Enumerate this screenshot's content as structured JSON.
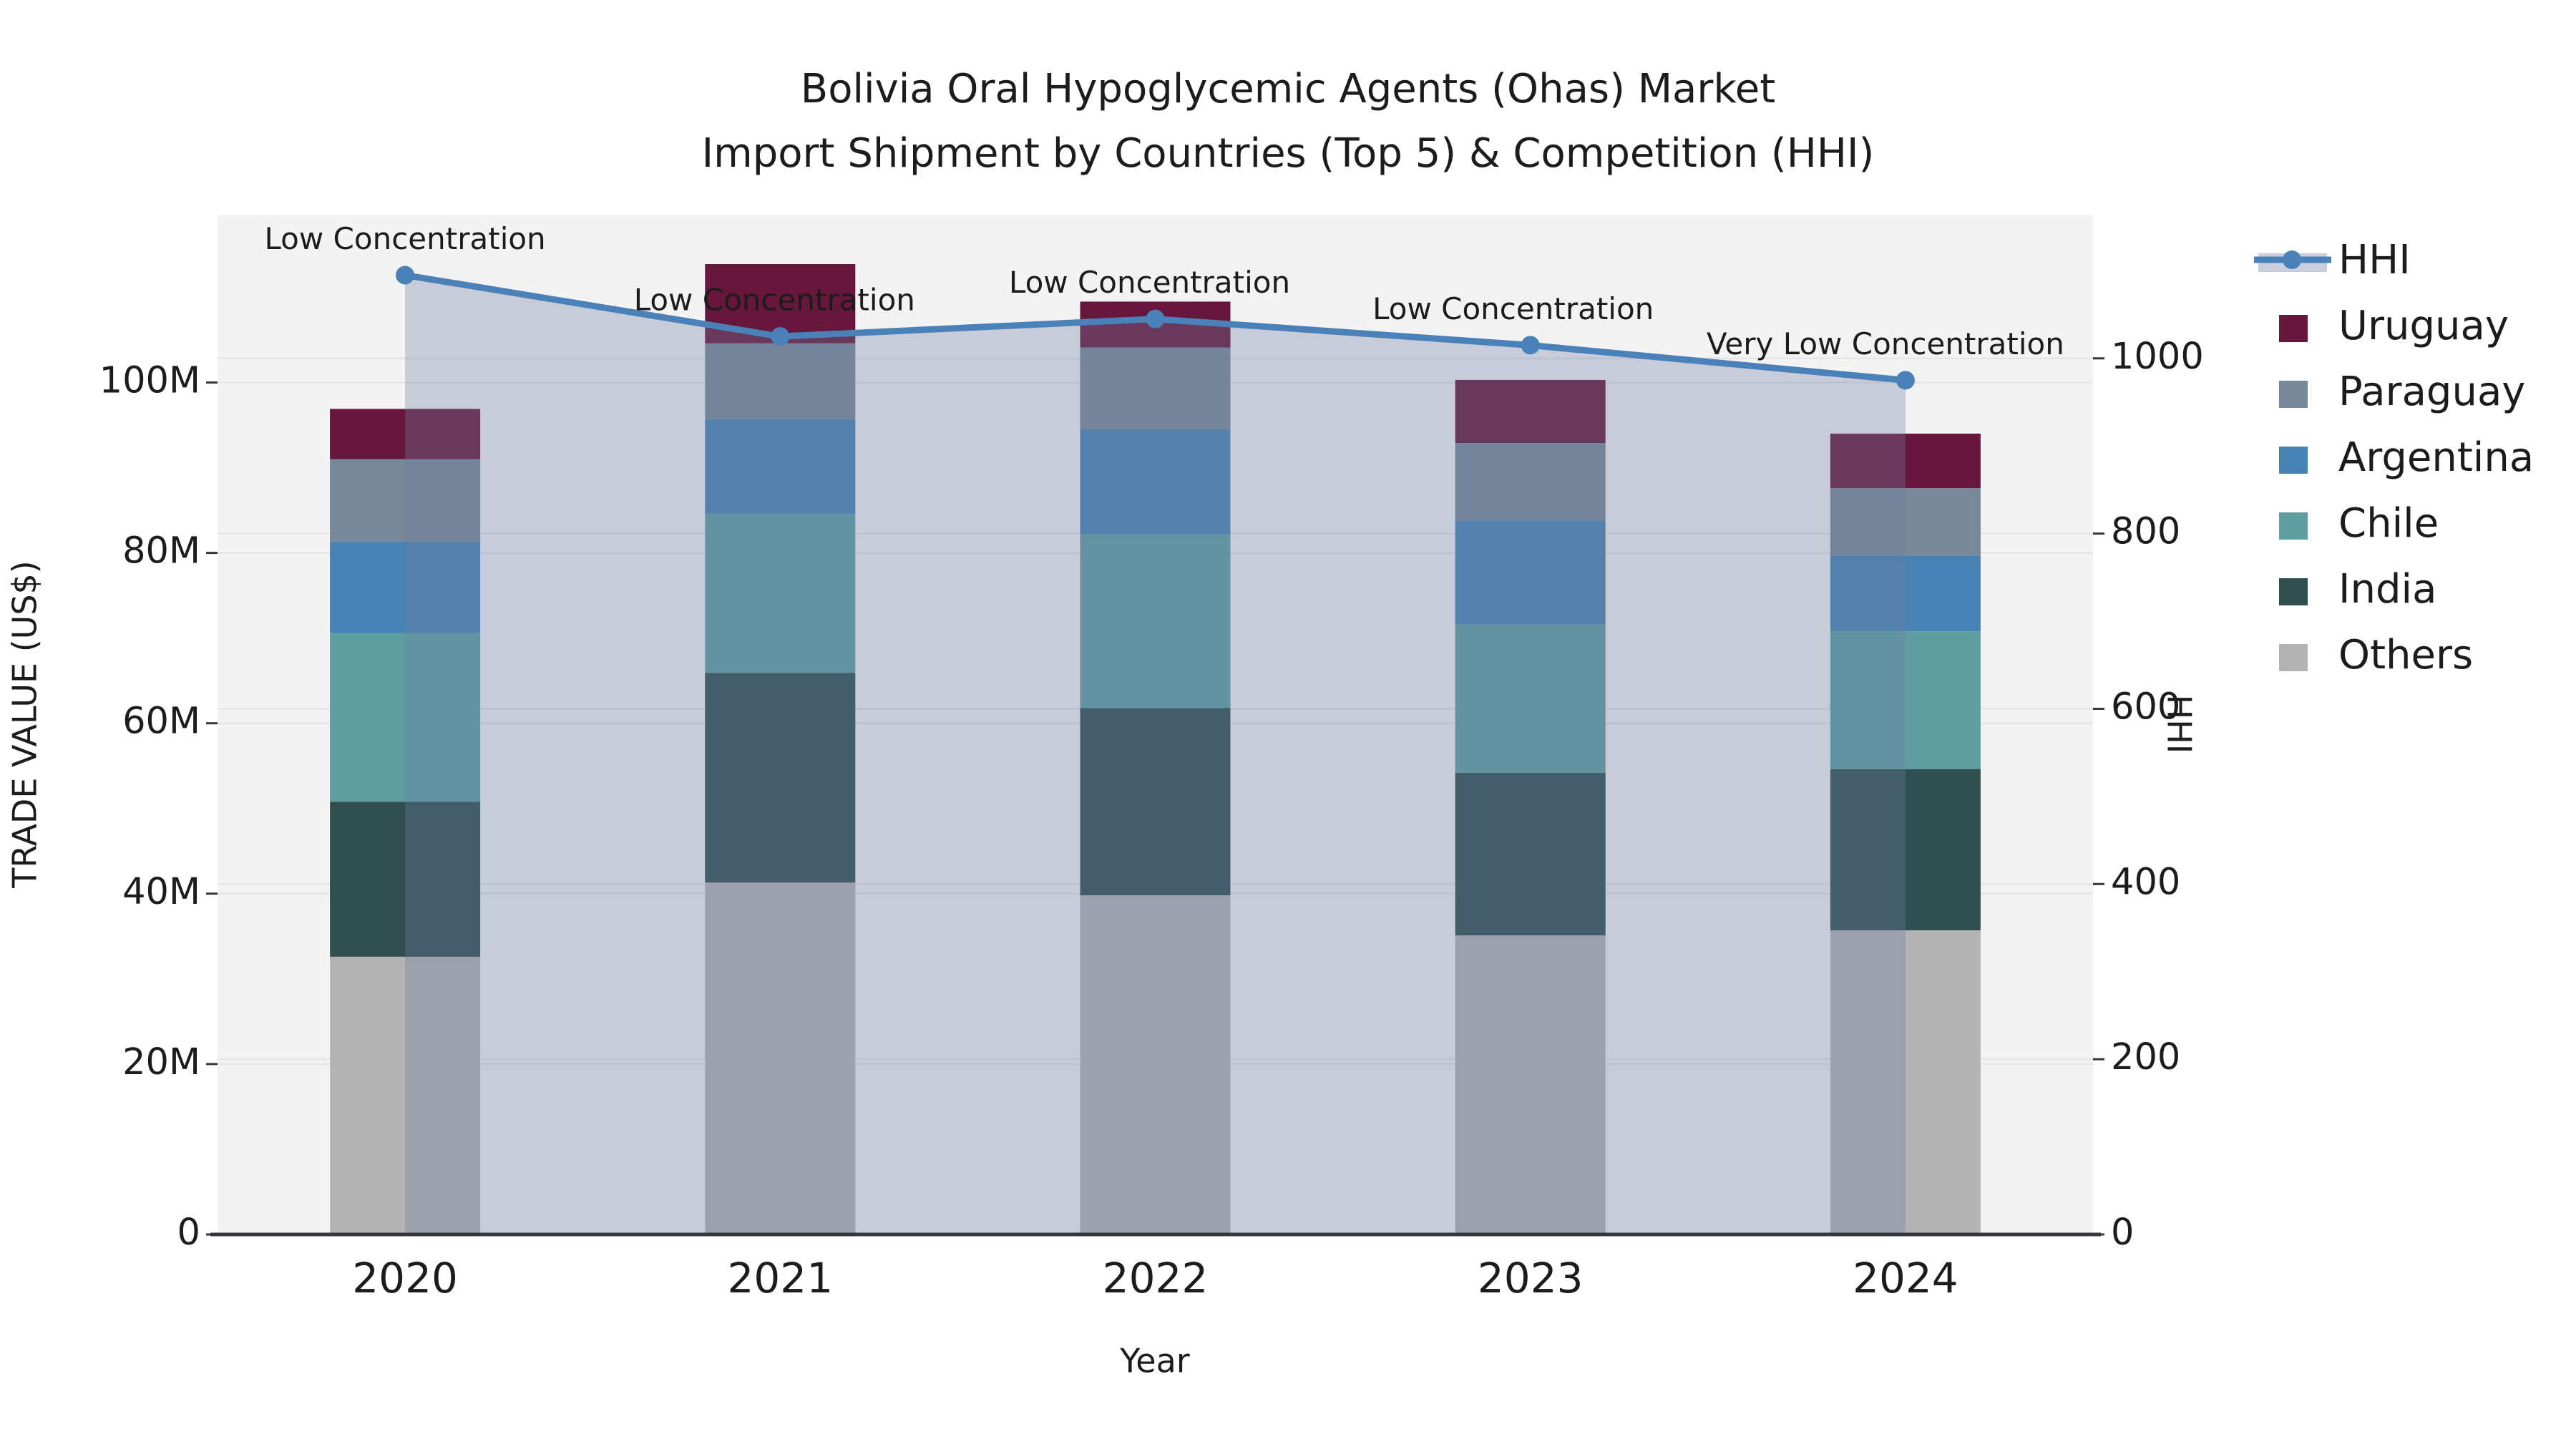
{
  "title": {
    "line1": "Bolivia Oral Hypoglycemic Agents (Ohas) Market",
    "line2": "Import Shipment by Countries (Top 5) & Competition (HHI)"
  },
  "axes": {
    "x": {
      "title": "Year",
      "tick_labels": [
        "2020",
        "2021",
        "2022",
        "2023",
        "2024"
      ]
    },
    "y_left": {
      "title": "TRADE VALUE (US$)",
      "tick_labels": [
        "0",
        "20M",
        "40M",
        "60M",
        "80M",
        "100M"
      ],
      "tick_values_musd": [
        0,
        20,
        40,
        60,
        80,
        100
      ]
    },
    "y_right": {
      "title": "HHI",
      "tick_labels": [
        "0",
        "200",
        "400",
        "600",
        "800",
        "1000"
      ],
      "tick_values": [
        0,
        200,
        400,
        600,
        800,
        1000
      ]
    }
  },
  "legend": {
    "items": [
      {
        "label": "HHI",
        "type": "line",
        "color": "#4a81b8"
      },
      {
        "label": "Uruguay",
        "type": "swatch",
        "color": "#67173c"
      },
      {
        "label": "Paraguay",
        "type": "swatch",
        "color": "#778899"
      },
      {
        "label": "Argentina",
        "type": "swatch",
        "color": "#4682b4"
      },
      {
        "label": "Chile",
        "type": "swatch",
        "color": "#5f9ea0"
      },
      {
        "label": "India",
        "type": "swatch",
        "color": "#2f4f4f"
      },
      {
        "label": "Others",
        "type": "swatch",
        "color": "#b3b3b3"
      }
    ]
  },
  "chart_data": {
    "type": "combo-stacked-bar-line",
    "categories": [
      "2020",
      "2021",
      "2022",
      "2023",
      "2024"
    ],
    "bar_unit": "US$ millions",
    "stack_order_bottom_to_top": [
      "Others",
      "India",
      "Chile",
      "Argentina",
      "Paraguay",
      "Uruguay"
    ],
    "bar_series": [
      {
        "name": "Others",
        "color": "#b3b3b3",
        "values_musd": [
          32.6,
          41.3,
          39.8,
          35.1,
          35.7
        ]
      },
      {
        "name": "India",
        "color": "#2f4f4f",
        "values_musd": [
          18.2,
          24.6,
          22.0,
          19.1,
          18.9
        ]
      },
      {
        "name": "Chile",
        "color": "#5f9ea0",
        "values_musd": [
          19.8,
          18.7,
          20.4,
          17.4,
          16.2
        ]
      },
      {
        "name": "Argentina",
        "color": "#4682b4",
        "values_musd": [
          10.7,
          11.1,
          12.3,
          12.2,
          8.9
        ]
      },
      {
        "name": "Paraguay",
        "color": "#778899",
        "values_musd": [
          9.7,
          8.9,
          9.6,
          9.1,
          7.9
        ]
      },
      {
        "name": "Uruguay",
        "color": "#67173c",
        "values_musd": [
          5.9,
          9.3,
          5.4,
          7.4,
          6.4
        ]
      }
    ],
    "bar_totals_musd": [
      96.9,
      113.9,
      109.5,
      100.3,
      94.0
    ],
    "line_series": {
      "name": "HHI",
      "axis": "right",
      "color": "#4a81b8",
      "values": [
        1095,
        1025,
        1045,
        1015,
        975
      ]
    },
    "annotations": [
      {
        "category": "2020",
        "text": "Low Concentration"
      },
      {
        "category": "2021",
        "text": "Low Concentration"
      },
      {
        "category": "2022",
        "text": "Low Concentration"
      },
      {
        "category": "2023",
        "text": "Low Concentration"
      },
      {
        "category": "2024",
        "text": "Very Low Concentration"
      }
    ],
    "axis_ranges": {
      "left_musd": [
        0,
        119.7
      ],
      "right_hhi": [
        0,
        1164
      ]
    },
    "layout_hints": {
      "legend_position": "right",
      "grid": true,
      "plot_background": "#f4f3f4"
    }
  },
  "colors": {
    "plot_background": "#f4f3f4",
    "page_background": "#ffffff",
    "gridline": "#e5e5e7",
    "axis_line": "#37373b",
    "text": "#1c1c1c",
    "hhi_line": "#4a81b8",
    "hhi_area_fill": "rgba(110,125,160,0.33)",
    "legend_band": "#c9cfda"
  }
}
